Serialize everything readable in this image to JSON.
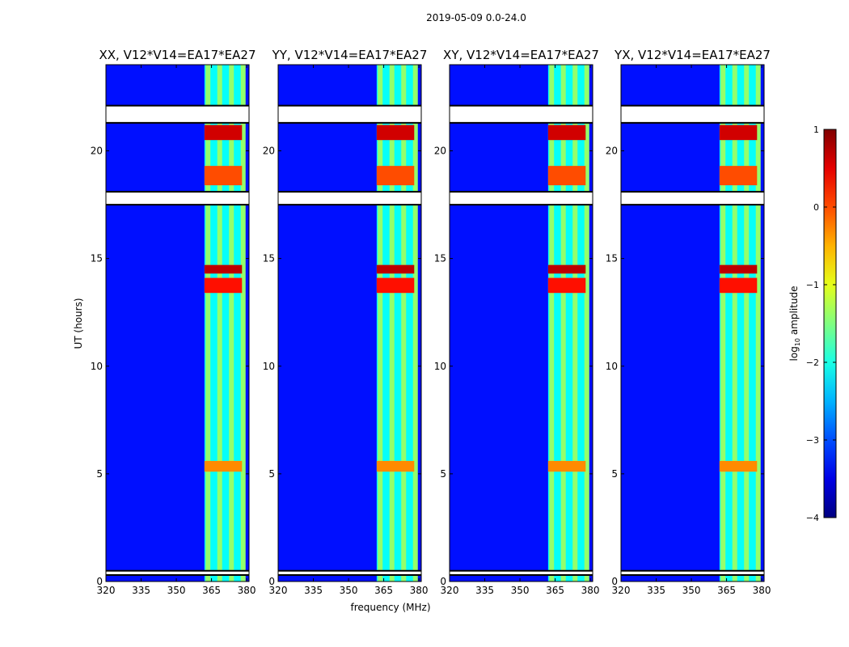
{
  "chart_data": {
    "type": "heatmap",
    "suptitle": "2019-05-09 0.0-24.0",
    "xlabel": "frequency (MHz)",
    "ylabel": "UT (hours)",
    "xlim": [
      320,
      381
    ],
    "ylim": [
      0,
      24
    ],
    "xticks": [
      320,
      335,
      350,
      365,
      380
    ],
    "xtick_labels": [
      "320",
      "335",
      "350",
      "365",
      "380"
    ],
    "yticks": [
      0,
      5,
      10,
      15,
      20
    ],
    "ytick_labels": [
      "0",
      "5",
      "10",
      "15",
      "20"
    ],
    "colorbar": {
      "label": "log10 amplitude",
      "label_base": "log",
      "label_sub": "10",
      "label_rest": " amplitude",
      "range": [
        -4,
        1
      ],
      "ticks": [
        1,
        0,
        -1,
        -2,
        -3,
        -4
      ],
      "tick_labels": [
        "1",
        "0",
        "−1",
        "−2",
        "−3",
        "−4"
      ],
      "colormap": "jet"
    },
    "panels": [
      {
        "title": "XX, V12*V14=EA17*EA27",
        "polarization": "XX"
      },
      {
        "title": "YY, V12*V14=EA17*EA27",
        "polarization": "YY"
      },
      {
        "title": "XY, V12*V14=EA17*EA27",
        "polarization": "XY"
      },
      {
        "title": "YX, V12*V14=EA17*EA27",
        "polarization": "YX"
      }
    ],
    "signal_band_mhz": [
      362,
      378
    ],
    "signal_channels_mhz": [
      363.5,
      368.5,
      373.5,
      378.5
    ],
    "bright_hours": [
      {
        "from": 20.5,
        "to": 21.2,
        "level": 0.6
      },
      {
        "from": 18.4,
        "to": 19.3,
        "level": 0.0
      },
      {
        "from": 14.3,
        "to": 14.7,
        "level": 0.7
      },
      {
        "from": 13.4,
        "to": 14.1,
        "level": 0.3
      },
      {
        "from": 5.1,
        "to": 5.6,
        "level": -0.3
      }
    ],
    "flagged_hours": [
      {
        "from": 21.3,
        "to": 22.1
      },
      {
        "from": 17.5,
        "to": 18.1
      },
      {
        "from": 0.3,
        "to": 0.5
      }
    ]
  }
}
